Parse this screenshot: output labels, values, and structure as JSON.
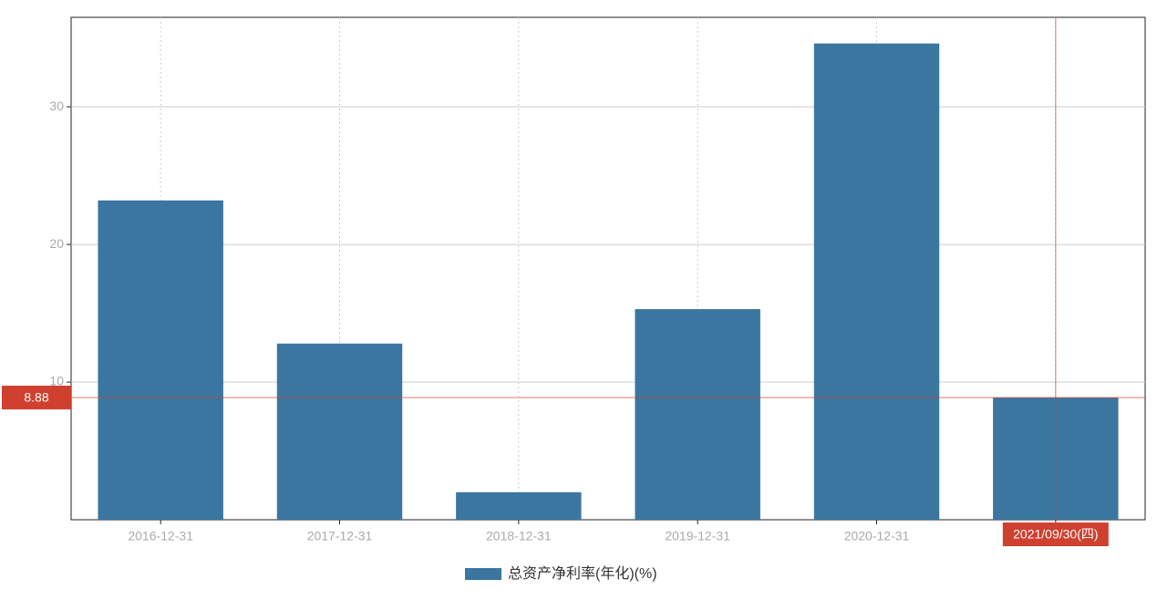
{
  "chart_data": {
    "type": "bar",
    "categories": [
      "2016-12-31",
      "2017-12-31",
      "2018-12-31",
      "2019-12-31",
      "2020-12-31",
      "2021/09/30(四)"
    ],
    "series": [
      {
        "name": "总资产净利率(年化)(%)",
        "color": "#3a76a0",
        "values": [
          23.2,
          12.8,
          2.0,
          15.3,
          34.6,
          8.88
        ]
      }
    ],
    "ylim": [
      0,
      36.5
    ],
    "yticks": [
      10,
      20,
      30
    ],
    "grid": true,
    "crosshair_y": 8.88,
    "crosshair_color": "#d0402f"
  }
}
